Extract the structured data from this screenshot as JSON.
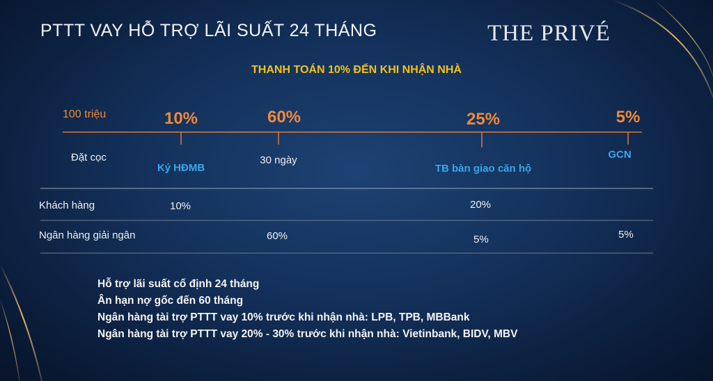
{
  "header": {
    "title": "PTTT VAY HỖ TRỢ LÃI SUẤT 24 THÁNG",
    "logo": "THE PRIVÉ"
  },
  "subtitle": "THANH TOÁN 10% ĐẾN KHI NHẬN NHÀ",
  "timeline": {
    "start_amount": "100 triệu",
    "start_label": "Đặt cọc",
    "milestones": [
      {
        "percent": "10%",
        "label": "Ký HĐMB"
      },
      {
        "percent": "60%",
        "label": "30 ngày"
      },
      {
        "percent": "25%",
        "label": "TB bàn giao căn hộ"
      },
      {
        "percent": "5%",
        "label": "GCN"
      }
    ]
  },
  "table": {
    "rows": [
      {
        "label": "Khách hàng",
        "ky_hdmb": "10%",
        "ban_giao": "20%"
      },
      {
        "label": "Ngân hàng giải ngân",
        "ngay_30": "60%",
        "ban_giao": "5%",
        "gcn": "5%"
      }
    ]
  },
  "notes": [
    "Hỗ trợ lãi suất cố định 24 tháng",
    "Ân hạn nợ gốc đến 60 tháng",
    "Ngân hàng tài trợ PTTT vay 10% trước khi nhận nhà: LPB, TPB, MBBank",
    "Ngân hàng tài trợ PTTT vay 20% - 30% trước khi nhận nhà: Vietinbank, BIDV, MBV"
  ]
}
